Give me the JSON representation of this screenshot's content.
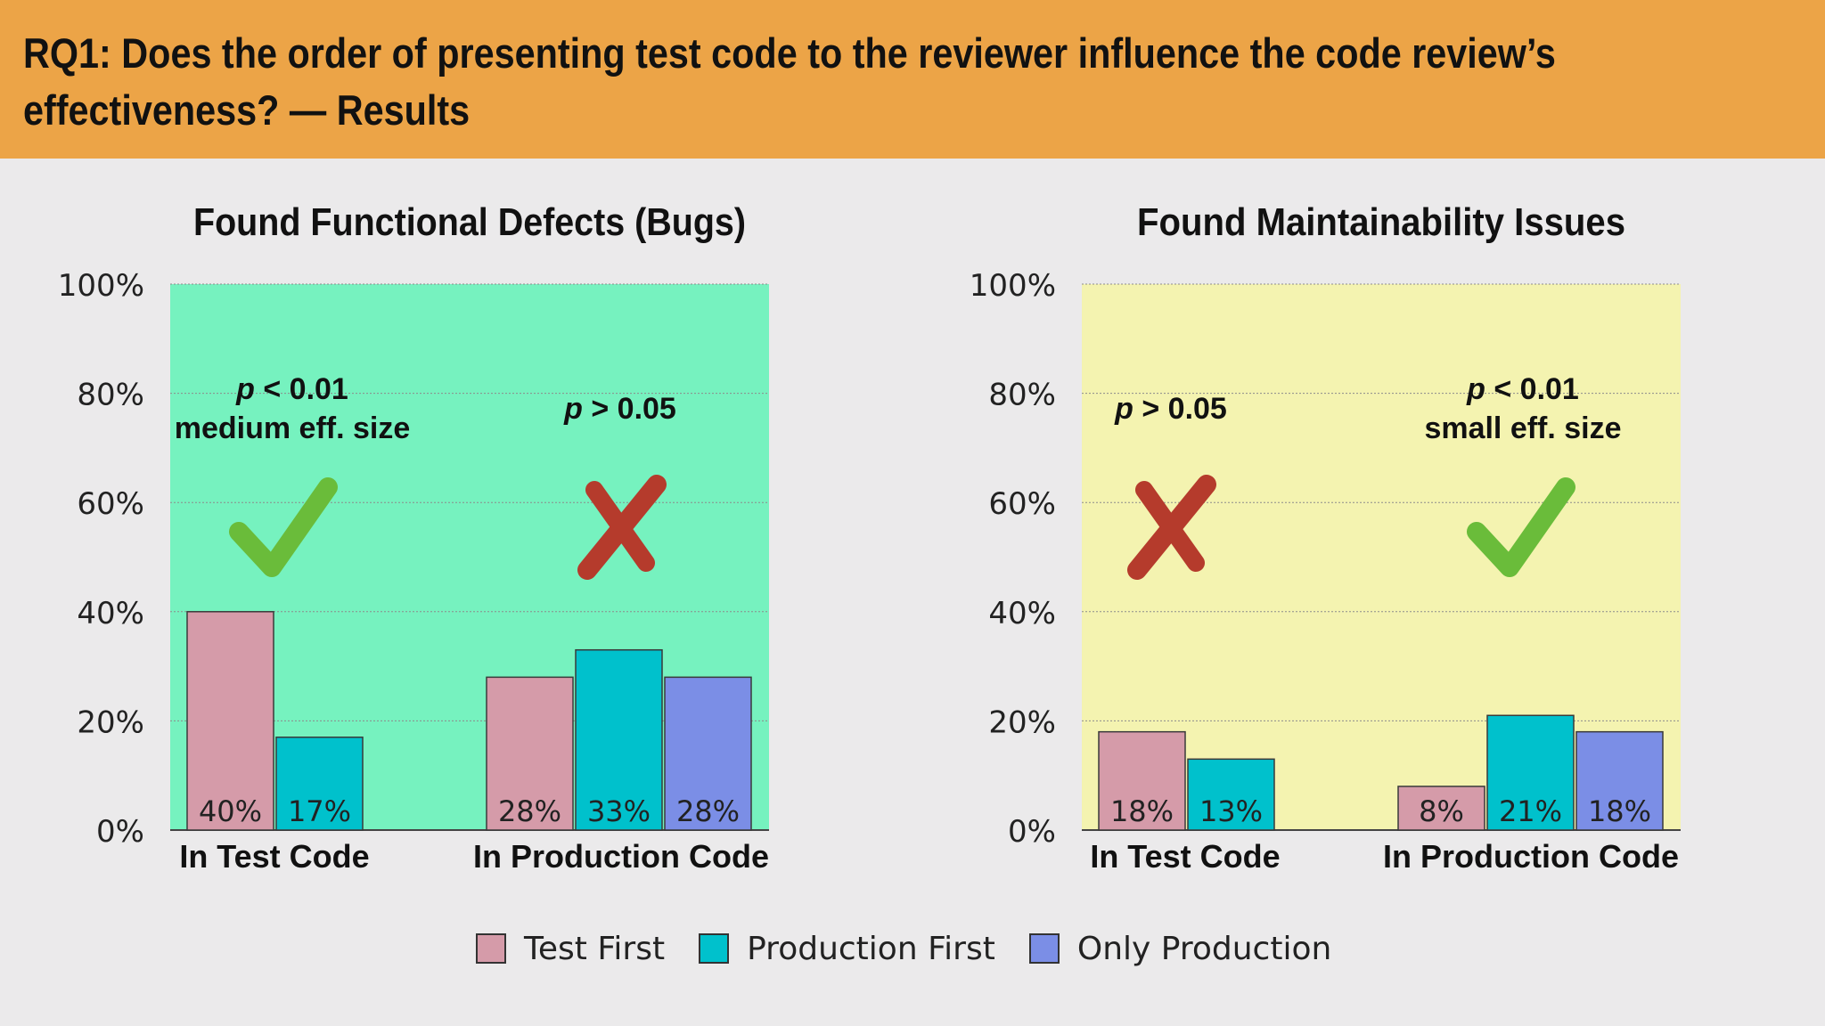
{
  "header": {
    "title": "RQ1: Does the order of presenting test code to the reviewer influence the code review’s effectiveness? — Results"
  },
  "colors": {
    "header_bg": "#eca447",
    "panel_functional_bg": "#76f2bf",
    "panel_maintainability_bg": "#f4f3b0",
    "test_first": "#d59ba9",
    "production_first": "#00c1cc",
    "only_production": "#7b8ee6",
    "check_green": "#6abc3a",
    "cross_red": "#b53b2c"
  },
  "legend": [
    {
      "label": "Test First",
      "color": "#d59ba9"
    },
    {
      "label": "Production First",
      "color": "#00c1cc"
    },
    {
      "label": "Only Production",
      "color": "#7b8ee6"
    }
  ],
  "chart_data": [
    {
      "type": "bar",
      "title": "Found Functional Defects (Bugs)",
      "background": "#76f2bf",
      "ylim": [
        0,
        100
      ],
      "yticks": [
        "0%",
        "20%",
        "40%",
        "60%",
        "80%",
        "100%"
      ],
      "grid": true,
      "groups": [
        {
          "label": "In Test Code",
          "bars": [
            {
              "series": "Test First",
              "value": 40,
              "label": "40%"
            },
            {
              "series": "Production First",
              "value": 17,
              "label": "17%"
            }
          ],
          "annotation": {
            "lines": [
              "p < 0.01",
              "medium eff. size"
            ],
            "mark": "check"
          }
        },
        {
          "label": "In Production Code",
          "bars": [
            {
              "series": "Test First",
              "value": 28,
              "label": "28%"
            },
            {
              "series": "Production First",
              "value": 33,
              "label": "33%"
            },
            {
              "series": "Only Production",
              "value": 28,
              "label": "28%"
            }
          ],
          "annotation": {
            "lines": [
              "p > 0.05"
            ],
            "mark": "cross"
          }
        }
      ]
    },
    {
      "type": "bar",
      "title": "Found Maintainability Issues",
      "background": "#f4f3b0",
      "ylim": [
        0,
        100
      ],
      "yticks": [
        "0%",
        "20%",
        "40%",
        "60%",
        "80%",
        "100%"
      ],
      "grid": true,
      "groups": [
        {
          "label": "In Test Code",
          "bars": [
            {
              "series": "Test First",
              "value": 18,
              "label": "18%"
            },
            {
              "series": "Production First",
              "value": 13,
              "label": "13%"
            }
          ],
          "annotation": {
            "lines": [
              "p > 0.05"
            ],
            "mark": "cross"
          }
        },
        {
          "label": "In Production Code",
          "bars": [
            {
              "series": "Test First",
              "value": 8,
              "label": "8%"
            },
            {
              "series": "Production First",
              "value": 21,
              "label": "21%"
            },
            {
              "series": "Only Production",
              "value": 18,
              "label": "18%"
            }
          ],
          "annotation": {
            "lines": [
              "p < 0.01",
              "small eff. size"
            ],
            "mark": "check"
          }
        }
      ]
    }
  ]
}
